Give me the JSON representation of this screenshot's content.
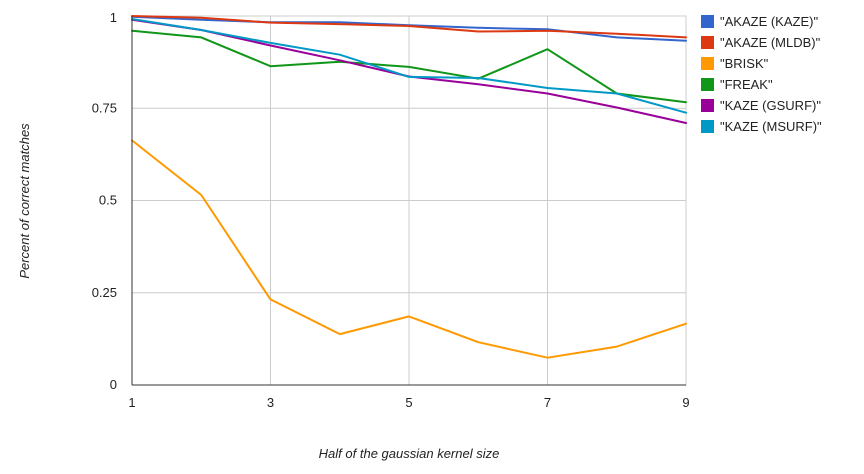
{
  "chart_data": {
    "type": "line",
    "title": "",
    "xlabel": "Half of the gaussian kernel size",
    "ylabel": "Percent of correct matches",
    "x": [
      1,
      2,
      3,
      4,
      5,
      6,
      7,
      8,
      9
    ],
    "xlim": [
      1,
      9
    ],
    "ylim": [
      0,
      1
    ],
    "xticks": [
      1,
      3,
      5,
      7,
      9
    ],
    "xtick_labels": [
      "1",
      "3",
      "5",
      "7",
      "9"
    ],
    "yticks": [
      0,
      0.25,
      0.5,
      0.75,
      1
    ],
    "ytick_labels": [
      "0",
      "0.25",
      "0.5",
      "0.75",
      "1"
    ],
    "grid": true,
    "legend_position": "right",
    "series": [
      {
        "name": "\"AKAZE (KAZE)\"",
        "color": "#3366cc",
        "values": [
          0.998,
          0.99,
          0.983,
          0.983,
          0.975,
          0.968,
          0.964,
          0.942,
          0.933
        ]
      },
      {
        "name": "\"AKAZE (MLDB)\"",
        "color": "#dc3912",
        "values": [
          1.0,
          0.995,
          0.982,
          0.978,
          0.973,
          0.958,
          0.96,
          0.952,
          0.942
        ]
      },
      {
        "name": "\"BRISK\"",
        "color": "#ff9900",
        "values": [
          0.663,
          0.515,
          0.232,
          0.138,
          0.186,
          0.116,
          0.074,
          0.104,
          0.166
        ]
      },
      {
        "name": "\"FREAK\"",
        "color": "#109618",
        "values": [
          0.96,
          0.942,
          0.864,
          0.876,
          0.862,
          0.83,
          0.91,
          0.79,
          0.766
        ]
      },
      {
        "name": "\"KAZE (GSURF)\"",
        "color": "#990099",
        "values": [
          0.99,
          0.962,
          0.92,
          0.88,
          0.836,
          0.815,
          0.79,
          0.752,
          0.71
        ]
      },
      {
        "name": "\"KAZE (MSURF)\"",
        "color": "#0099c6",
        "values": [
          0.992,
          0.962,
          0.927,
          0.895,
          0.835,
          0.832,
          0.805,
          0.79,
          0.738
        ]
      }
    ]
  }
}
